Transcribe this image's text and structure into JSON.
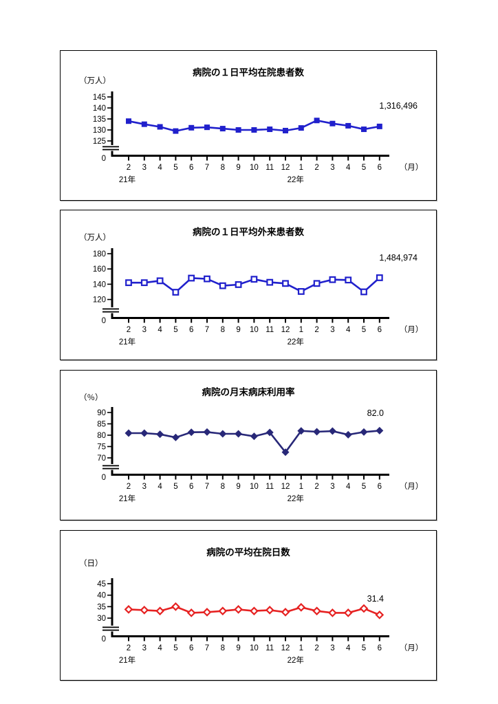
{
  "page": {
    "background_color": "#ffffff",
    "text_color": "#000000"
  },
  "chart_data": [
    {
      "type": "line",
      "title": "病院の１日平均在院患者数",
      "unit_label": "（万人）",
      "month_unit_label": "（月）",
      "origin_label": "0",
      "categories": [
        "2",
        "3",
        "4",
        "5",
        "6",
        "7",
        "8",
        "9",
        "10",
        "11",
        "12",
        "1",
        "2",
        "3",
        "4",
        "5",
        "6"
      ],
      "year_labels": [
        {
          "label": "21年",
          "month_index": 0
        },
        {
          "label": "22年",
          "month_index": 11
        }
      ],
      "values": [
        134.0,
        132.6,
        131.4,
        129.5,
        131.0,
        131.2,
        130.6,
        130.0,
        130.0,
        130.3,
        129.7,
        130.9,
        134.3,
        132.9,
        131.9,
        130.3,
        131.6
      ],
      "y_ticks": [
        "145",
        "140",
        "135",
        "130",
        "125"
      ],
      "ylim_shown": [
        125,
        145
      ],
      "axis_break": true,
      "grid": "off",
      "annotation": "1,316,496",
      "line_color": "#2020cc",
      "marker": "square-filled"
    },
    {
      "type": "line",
      "title": "病院の１日平均外来患者数",
      "unit_label": "（万人）",
      "month_unit_label": "（月）",
      "origin_label": "0",
      "categories": [
        "2",
        "3",
        "4",
        "5",
        "6",
        "7",
        "8",
        "9",
        "10",
        "11",
        "12",
        "1",
        "2",
        "3",
        "4",
        "5",
        "6"
      ],
      "year_labels": [
        {
          "label": "21年",
          "month_index": 0
        },
        {
          "label": "22年",
          "month_index": 11
        }
      ],
      "values": [
        142.0,
        142.0,
        144.5,
        129.5,
        148.0,
        147.0,
        138.0,
        139.5,
        146.5,
        142.5,
        141.0,
        130.5,
        141.0,
        146.0,
        145.5,
        130.0,
        148.5
      ],
      "y_ticks": [
        "180",
        "160",
        "140",
        "120"
      ],
      "ylim_shown": [
        120,
        180
      ],
      "axis_break": true,
      "grid": "off",
      "annotation": "1,484,974",
      "line_color": "#2020cc",
      "marker": "square-open"
    },
    {
      "type": "line",
      "title": "病院の月末病床利用率",
      "unit_label": "（％）",
      "month_unit_label": "（月）",
      "origin_label": "0",
      "categories": [
        "2",
        "3",
        "4",
        "5",
        "6",
        "7",
        "8",
        "9",
        "10",
        "11",
        "12",
        "1",
        "2",
        "3",
        "4",
        "5",
        "6"
      ],
      "year_labels": [
        {
          "label": "21年",
          "month_index": 0
        },
        {
          "label": "22年",
          "month_index": 11
        }
      ],
      "values": [
        80.9,
        80.9,
        80.4,
        79.0,
        81.3,
        81.4,
        80.6,
        80.6,
        79.5,
        81.2,
        72.5,
        81.9,
        81.5,
        81.8,
        80.2,
        81.4,
        82.0
      ],
      "y_ticks": [
        "90",
        "85",
        "80",
        "75",
        "70"
      ],
      "ylim_shown": [
        70,
        90
      ],
      "axis_break": true,
      "grid": "off",
      "annotation": "82.0",
      "line_color": "#282878",
      "marker": "diamond-filled"
    },
    {
      "type": "line",
      "title": "病院の平均在院日数",
      "unit_label": "（日）",
      "month_unit_label": "（月）",
      "origin_label": "0",
      "categories": [
        "2",
        "3",
        "4",
        "5",
        "6",
        "7",
        "8",
        "9",
        "10",
        "11",
        "12",
        "1",
        "2",
        "3",
        "4",
        "5",
        "6"
      ],
      "year_labels": [
        {
          "label": "21年",
          "month_index": 0
        },
        {
          "label": "22年",
          "month_index": 11
        }
      ],
      "values": [
        33.8,
        33.5,
        33.1,
        35.0,
        32.3,
        32.6,
        33.1,
        33.8,
        33.1,
        33.5,
        32.6,
        34.7,
        33.1,
        32.3,
        32.3,
        34.2,
        31.4
      ],
      "y_ticks": [
        "45",
        "40",
        "35",
        "30"
      ],
      "ylim_shown": [
        30,
        45
      ],
      "axis_break": true,
      "grid": "off",
      "annotation": "31.4",
      "line_color": "#e62222",
      "marker": "diamond-open"
    }
  ]
}
